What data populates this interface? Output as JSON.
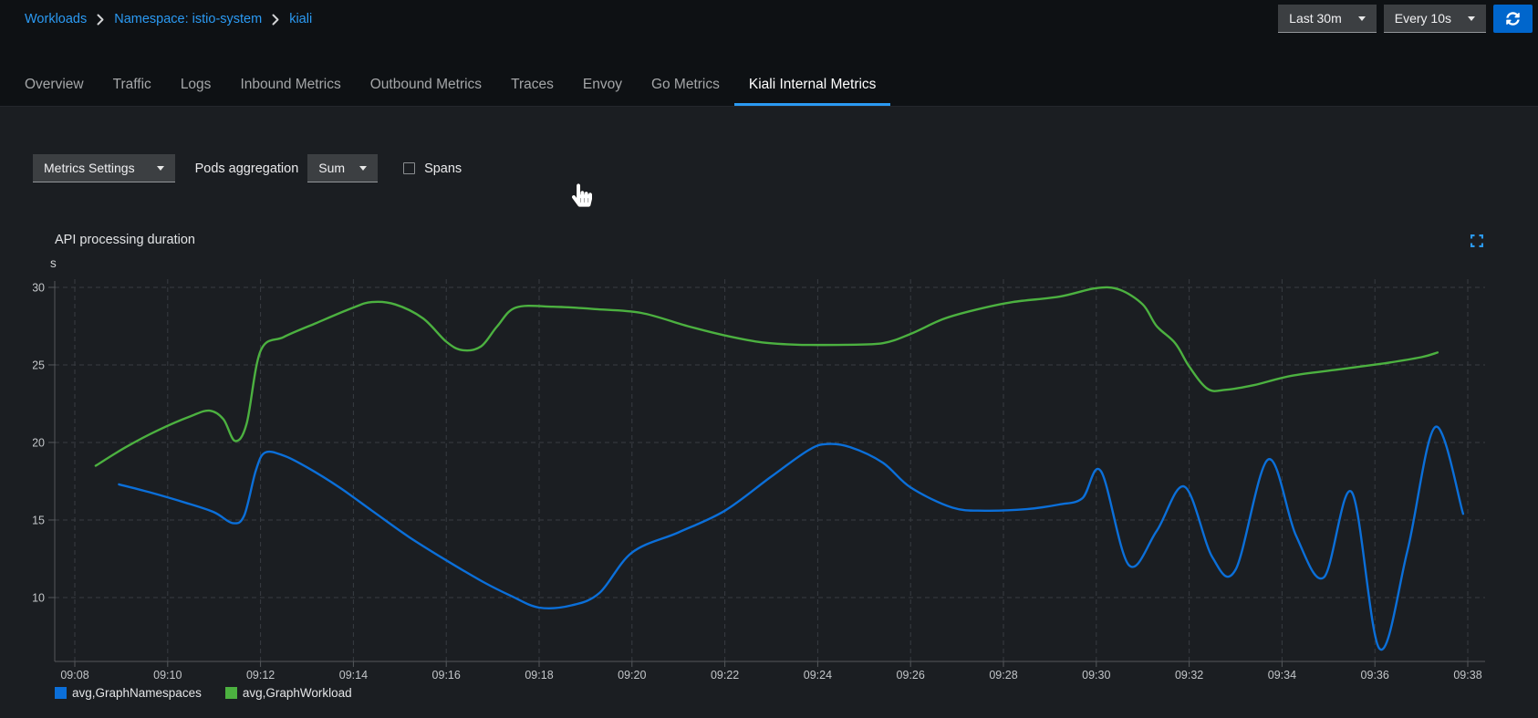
{
  "breadcrumb": {
    "items": [
      "Workloads",
      "Namespace: istio-system",
      "kiali"
    ]
  },
  "top_controls": {
    "duration": "Last 30m",
    "refresh_interval": "Every 10s",
    "refresh_icon": "sync-icon"
  },
  "tabs": {
    "items": [
      "Overview",
      "Traffic",
      "Logs",
      "Inbound Metrics",
      "Outbound Metrics",
      "Traces",
      "Envoy",
      "Go Metrics",
      "Kiali Internal Metrics"
    ],
    "active": "Kiali Internal Metrics"
  },
  "toolbar": {
    "metrics_settings": "Metrics Settings",
    "pods_aggregation_label": "Pods aggregation",
    "aggregation": "Sum",
    "spans_label": "Spans",
    "spans_checked": false
  },
  "colors": {
    "accent": "#2b9af3",
    "primary_button": "#0066cc",
    "header_bg": "#0e1114",
    "content_bg": "#1b1e22"
  },
  "chart_data": {
    "type": "line",
    "title": "API processing duration",
    "ylabel": "s",
    "grid": "dashed",
    "legend_position": "bottom",
    "xlim": [
      0,
      30
    ],
    "ylim": [
      5.88,
      30.88
    ],
    "y_ticks": [
      30,
      25,
      20,
      15,
      10
    ],
    "x_ticks": [
      {
        "t": 0,
        "label": "09:08"
      },
      {
        "t": 2,
        "label": "09:10"
      },
      {
        "t": 4,
        "label": "09:12"
      },
      {
        "t": 6,
        "label": "09:14"
      },
      {
        "t": 8,
        "label": "09:16"
      },
      {
        "t": 10,
        "label": "09:18"
      },
      {
        "t": 12,
        "label": "09:20"
      },
      {
        "t": 14,
        "label": "09:22"
      },
      {
        "t": 16,
        "label": "09:24"
      },
      {
        "t": 18,
        "label": "09:26"
      },
      {
        "t": 20,
        "label": "09:28"
      },
      {
        "t": 22,
        "label": "09:30"
      },
      {
        "t": 24,
        "label": "09:32"
      },
      {
        "t": 26,
        "label": "09:34"
      },
      {
        "t": 28,
        "label": "09:36"
      },
      {
        "t": 30,
        "label": "09:38"
      }
    ],
    "series": [
      {
        "name": "avg,GraphNamespaces",
        "color": "#0b6fd9",
        "points": [
          [
            0.95,
            17.3
          ],
          [
            1.6,
            16.8
          ],
          [
            2.4,
            16.1
          ],
          [
            3.0,
            15.5
          ],
          [
            3.4,
            14.8
          ],
          [
            3.65,
            15.3
          ],
          [
            3.9,
            18.2
          ],
          [
            4.1,
            19.35
          ],
          [
            4.5,
            19.15
          ],
          [
            5.0,
            18.4
          ],
          [
            5.7,
            17.1
          ],
          [
            6.4,
            15.6
          ],
          [
            7.2,
            13.9
          ],
          [
            8.0,
            12.4
          ],
          [
            8.8,
            11.0
          ],
          [
            9.4,
            10.1
          ],
          [
            10.0,
            9.35
          ],
          [
            10.7,
            9.5
          ],
          [
            11.3,
            10.3
          ],
          [
            12.0,
            12.9
          ],
          [
            13.0,
            14.2
          ],
          [
            14.0,
            15.6
          ],
          [
            15.0,
            17.8
          ],
          [
            15.8,
            19.5
          ],
          [
            16.2,
            19.9
          ],
          [
            16.7,
            19.7
          ],
          [
            17.4,
            18.7
          ],
          [
            18.0,
            17.1
          ],
          [
            18.9,
            15.8
          ],
          [
            19.6,
            15.6
          ],
          [
            20.5,
            15.7
          ],
          [
            21.2,
            16.0
          ],
          [
            21.7,
            16.4
          ],
          [
            22.1,
            18.15
          ],
          [
            22.7,
            12.1
          ],
          [
            23.3,
            14.3
          ],
          [
            23.9,
            17.15
          ],
          [
            24.5,
            12.6
          ],
          [
            25.0,
            11.8
          ],
          [
            25.7,
            18.9
          ],
          [
            26.3,
            14.0
          ],
          [
            26.9,
            11.3
          ],
          [
            27.5,
            16.8
          ],
          [
            28.1,
            6.7
          ],
          [
            28.7,
            13.0
          ],
          [
            29.3,
            21.0
          ],
          [
            29.9,
            15.4
          ]
        ]
      },
      {
        "name": "avg,GraphWorkload",
        "color": "#4cb140",
        "points": [
          [
            0.45,
            18.5
          ],
          [
            1.1,
            19.7
          ],
          [
            1.8,
            20.8
          ],
          [
            2.5,
            21.7
          ],
          [
            2.9,
            22.05
          ],
          [
            3.2,
            21.5
          ],
          [
            3.45,
            20.1
          ],
          [
            3.7,
            21.2
          ],
          [
            4.0,
            25.9
          ],
          [
            4.5,
            26.8
          ],
          [
            5.2,
            27.7
          ],
          [
            6.0,
            28.7
          ],
          [
            6.4,
            29.05
          ],
          [
            6.9,
            28.9
          ],
          [
            7.5,
            28.0
          ],
          [
            8.0,
            26.5
          ],
          [
            8.35,
            25.95
          ],
          [
            8.75,
            26.2
          ],
          [
            9.1,
            27.5
          ],
          [
            9.5,
            28.7
          ],
          [
            10.3,
            28.75
          ],
          [
            11.2,
            28.6
          ],
          [
            12.2,
            28.35
          ],
          [
            13.2,
            27.5
          ],
          [
            14.0,
            26.9
          ],
          [
            14.8,
            26.45
          ],
          [
            15.6,
            26.3
          ],
          [
            16.6,
            26.3
          ],
          [
            17.4,
            26.4
          ],
          [
            18.0,
            27.0
          ],
          [
            18.7,
            27.95
          ],
          [
            19.4,
            28.55
          ],
          [
            20.2,
            29.05
          ],
          [
            21.2,
            29.4
          ],
          [
            22.0,
            29.95
          ],
          [
            22.5,
            29.85
          ],
          [
            23.0,
            28.9
          ],
          [
            23.3,
            27.5
          ],
          [
            23.7,
            26.4
          ],
          [
            24.0,
            24.9
          ],
          [
            24.4,
            23.45
          ],
          [
            24.8,
            23.4
          ],
          [
            25.4,
            23.7
          ],
          [
            26.2,
            24.3
          ],
          [
            27.2,
            24.7
          ],
          [
            28.2,
            25.1
          ],
          [
            29.0,
            25.5
          ],
          [
            29.35,
            25.8
          ]
        ]
      }
    ]
  }
}
